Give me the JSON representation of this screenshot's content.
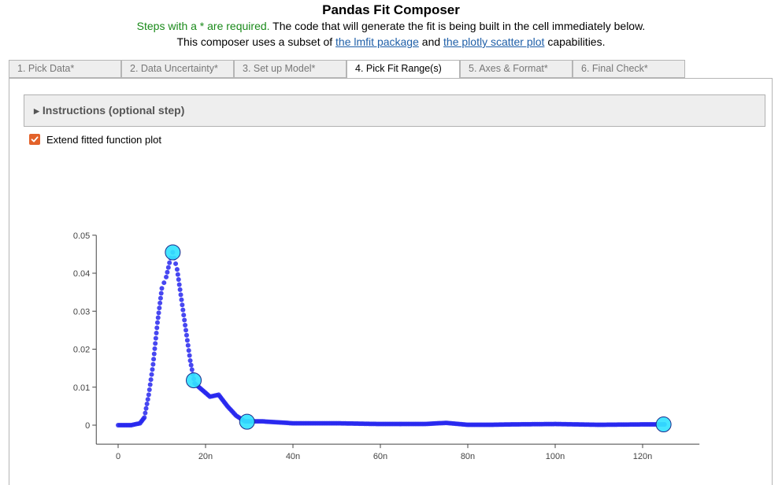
{
  "header": {
    "title": "Pandas Fit Composer",
    "required_note": "Steps with a * are required.",
    "line1_rest": "The code that will generate the fit is being built in the cell immediately below.",
    "line2_pre": "This composer uses a subset of",
    "link_lmfit": "the lmfit package",
    "line2_mid": "and",
    "link_plotly": "the plotly scatter plot",
    "line2_post": "capabilities."
  },
  "tabs": [
    {
      "label": "1. Pick Data*"
    },
    {
      "label": "2. Data Uncertainty*"
    },
    {
      "label": "3. Set up Model*"
    },
    {
      "label": "4. Pick Fit Range(s)"
    },
    {
      "label": "5. Axes & Format*"
    },
    {
      "label": "6. Final Check*"
    }
  ],
  "active_tab": 3,
  "instructions": {
    "label": "Instructions (optional step)"
  },
  "extend_checkbox": {
    "label": "Extend fitted function plot",
    "checked": true
  },
  "colors": {
    "accent": "#e3622a",
    "points": "#2727ee",
    "markers": "#34e3ff"
  },
  "chart_data": {
    "type": "scatter",
    "title": "",
    "xlabel": "",
    "ylabel": "",
    "xlim": [
      -5e-09,
      1.33e-07
    ],
    "ylim": [
      -0.005,
      0.05
    ],
    "x_ticks": [
      {
        "v": 0,
        "label": "0"
      },
      {
        "v": 2e-08,
        "label": "20n"
      },
      {
        "v": 4e-08,
        "label": "40n"
      },
      {
        "v": 6e-08,
        "label": "60n"
      },
      {
        "v": 8e-08,
        "label": "80n"
      },
      {
        "v": 1e-07,
        "label": "100n"
      },
      {
        "v": 1.2e-07,
        "label": "120n"
      }
    ],
    "y_ticks": [
      {
        "v": 0,
        "label": "0"
      },
      {
        "v": 0.01,
        "label": "0.01"
      },
      {
        "v": 0.02,
        "label": "0.02"
      },
      {
        "v": 0.03,
        "label": "0.03"
      },
      {
        "v": 0.04,
        "label": "0.04"
      },
      {
        "v": 0.05,
        "label": "0.05"
      }
    ],
    "curve_keypoints": [
      [
        0,
        0
      ],
      [
        3e-09,
        0
      ],
      [
        5e-09,
        0.0005
      ],
      [
        6e-09,
        0.002
      ],
      [
        7e-09,
        0.008
      ],
      [
        8e-09,
        0.016
      ],
      [
        9e-09,
        0.027
      ],
      [
        1e-08,
        0.036
      ],
      [
        1.1e-08,
        0.039
      ],
      [
        1.2e-08,
        0.044
      ],
      [
        1.25e-08,
        0.0455
      ],
      [
        1.35e-08,
        0.041
      ],
      [
        1.45e-08,
        0.033
      ],
      [
        1.55e-08,
        0.025
      ],
      [
        1.65e-08,
        0.017
      ],
      [
        1.75e-08,
        0.011
      ],
      [
        1.9e-08,
        0.0095
      ],
      [
        2.1e-08,
        0.0075
      ],
      [
        2.3e-08,
        0.008
      ],
      [
        2.5e-08,
        0.005
      ],
      [
        2.7e-08,
        0.0025
      ],
      [
        2.9e-08,
        0.001
      ],
      [
        3.3e-08,
        0.001
      ],
      [
        4e-08,
        0.0005
      ],
      [
        5e-08,
        0.0005
      ],
      [
        6e-08,
        0.0003
      ],
      [
        7e-08,
        0.0003
      ],
      [
        7.5e-08,
        0.0006
      ],
      [
        8e-08,
        0.0001
      ],
      [
        8.5e-08,
        0.0001
      ],
      [
        9e-08,
        0.0002
      ],
      [
        1e-07,
        0.0003
      ],
      [
        1.1e-07,
        0.0001
      ],
      [
        1.2e-07,
        0.0002
      ],
      [
        1.25e-07,
        0.0002
      ]
    ],
    "selected_points": [
      {
        "x": 1.25e-08,
        "y": 0.0455
      },
      {
        "x": 1.73e-08,
        "y": 0.0118
      },
      {
        "x": 2.95e-08,
        "y": 0.0009
      },
      {
        "x": 1.248e-07,
        "y": 0.0002
      }
    ]
  }
}
